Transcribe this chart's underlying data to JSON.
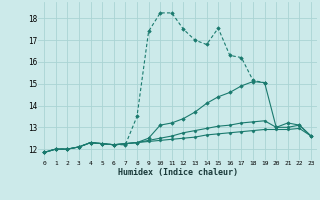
{
  "xlabel": "Humidex (Indice chaleur)",
  "x_values": [
    0,
    1,
    2,
    3,
    4,
    5,
    6,
    7,
    8,
    9,
    10,
    11,
    12,
    13,
    14,
    15,
    16,
    17,
    18,
    19,
    20,
    21,
    22,
    23
  ],
  "line1": [
    11.85,
    12.0,
    12.0,
    12.1,
    12.3,
    12.25,
    12.2,
    12.2,
    13.5,
    17.4,
    18.25,
    18.25,
    17.5,
    17.0,
    16.8,
    17.55,
    16.3,
    16.2,
    15.15,
    15.05,
    null,
    null,
    null,
    null
  ],
  "line2": [
    11.85,
    12.0,
    12.0,
    12.1,
    12.3,
    12.25,
    12.2,
    12.25,
    12.3,
    12.5,
    13.1,
    13.2,
    13.4,
    13.7,
    14.1,
    14.4,
    14.6,
    14.9,
    15.1,
    15.05,
    13.0,
    13.2,
    13.1,
    12.6
  ],
  "line3": [
    11.85,
    12.0,
    12.0,
    12.1,
    12.3,
    12.25,
    12.2,
    12.25,
    12.3,
    12.4,
    12.5,
    12.6,
    12.75,
    12.85,
    12.95,
    13.05,
    13.1,
    13.2,
    13.25,
    13.3,
    13.0,
    13.0,
    13.1,
    12.6
  ],
  "line4": [
    11.85,
    12.0,
    12.0,
    12.1,
    12.3,
    12.25,
    12.2,
    12.25,
    12.3,
    12.35,
    12.4,
    12.45,
    12.5,
    12.55,
    12.65,
    12.7,
    12.75,
    12.8,
    12.85,
    12.9,
    12.9,
    12.9,
    12.95,
    12.6
  ],
  "line_color": "#1a7a6e",
  "bg_color": "#cceaea",
  "grid_color": "#aad4d4",
  "ylim": [
    11.5,
    18.75
  ],
  "yticks": [
    12,
    13,
    14,
    15,
    16,
    17,
    18
  ],
  "xlim": [
    -0.5,
    23.5
  ]
}
